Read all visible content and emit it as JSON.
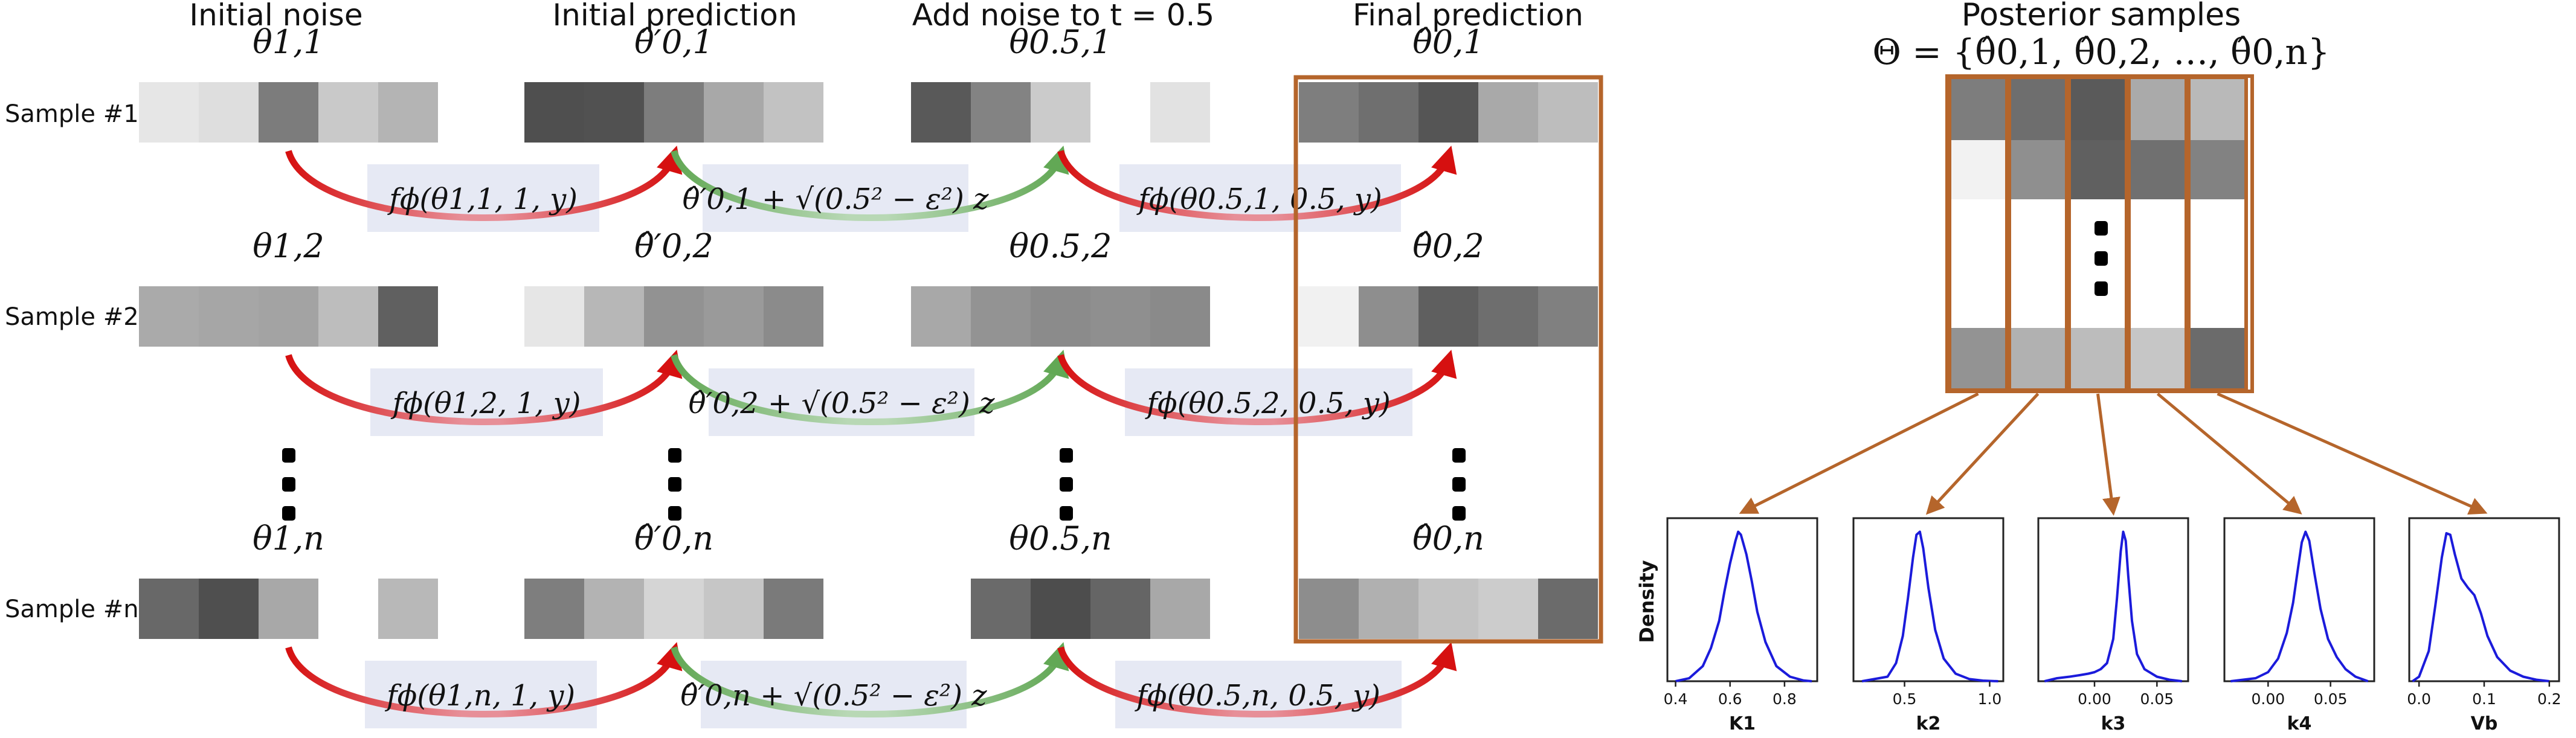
{
  "palette": {
    "frame": "#b5652b",
    "arrow_red": "#d61010",
    "arrow_red_light": "#e78f98",
    "arrow_green": "#62a855",
    "arrow_green_light": "#b8d8b5",
    "formula_bg": "#e6e9f4",
    "kde_line": "#1b1bdb"
  },
  "stages": [
    {
      "title": "Initial noise"
    },
    {
      "title": "Initial prediction"
    },
    {
      "title": "Add noise to t = 0.5"
    },
    {
      "title": "Final prediction"
    }
  ],
  "rows": [
    {
      "label": "Sample #1",
      "var_labels": [
        "θ1,1",
        "θ̂′0,1",
        "θ0.5,1",
        "θ̂0,1"
      ],
      "formulas": [
        "fϕ(θ1,1, 1, y)",
        "θ̂′0,1 + √(0.5² − ε²) z",
        "fϕ(θ0.5,1, 0.5, y)"
      ],
      "shades": [
        [
          "#e6e6e6",
          "#dedede",
          "#7c7c7c",
          "#c9c9c9",
          "#b4b4b4"
        ],
        [
          "#4f4f4f",
          "#515151",
          "#7d7d7d",
          "#a8a8a8",
          "#c2c2c2"
        ],
        [
          "#595959",
          "#838383",
          "#cbcbcb",
          "#ffffff",
          "#e2e2e2"
        ],
        [
          "#7e7e7e",
          "#6f6f6f",
          "#555555",
          "#a9a9a9",
          "#bdbdbd"
        ]
      ]
    },
    {
      "label": "Sample #2",
      "var_labels": [
        "θ1,2",
        "θ̂′0,2",
        "θ0.5,2",
        "θ̂0,2"
      ],
      "formulas": [
        "fϕ(θ1,2, 1, y)",
        "θ̂′0,2 + √(0.5² − ε²) z",
        "fϕ(θ0.5,2, 0.5, y)"
      ],
      "shades": [
        [
          "#aaaaaa",
          "#a6a6a6",
          "#a3a3a3",
          "#bdbdbd",
          "#606060"
        ],
        [
          "#e6e6e6",
          "#b7b7b7",
          "#929292",
          "#9a9a9a",
          "#8b8b8b"
        ],
        [
          "#a8a8a8",
          "#939393",
          "#8b8b8b",
          "#8f8f8f",
          "#8a8a8a"
        ],
        [
          "#f1f1f1",
          "#8e8e8e",
          "#5f5f5f",
          "#6e6e6e",
          "#808080"
        ]
      ]
    },
    {
      "label": "Sample #n",
      "var_labels": [
        "θ1,n",
        "θ̂′0,n",
        "θ0.5,n",
        "θ̂0,n"
      ],
      "formulas": [
        "fϕ(θ1,n, 1, y)",
        "θ̂′0,n + √(0.5² − ε²) z",
        "fϕ(θ0.5,n, 0.5, y)"
      ],
      "shades": [
        [
          "#686868",
          "#4f4f4f",
          "#a8a8a8",
          "#ffffff",
          "#b8b8b8"
        ],
        [
          "#7e7e7e",
          "#b3b3b3",
          "#d5d5d5",
          "#c6c6c6",
          "#7a7a7a"
        ],
        [
          "#ffffff",
          "#6a6a6a",
          "#4d4d4d",
          "#656565",
          "#a8a8a8"
        ],
        [
          "#8d8d8d",
          "#b0b0b0",
          "#c3c3c3",
          "#cccccc",
          "#6b6b6b"
        ]
      ]
    }
  ],
  "posterior": {
    "title": "Posterior samples",
    "set_label": "Θ = {θ̂0,1, θ̂0,2, …, θ̂0,n}",
    "shades": [
      [
        "#7d7d7d",
        "#6e6e6e",
        "#5a5a5a",
        "#aaaaaa",
        "#b9b9b9"
      ],
      [
        "#f2f2f2",
        "#8f8f8f",
        "#606060",
        "#707070",
        "#828282"
      ],
      [
        "#939393",
        "#b1b1b1",
        "#bcbcbc",
        "#c6c6c6",
        "#6b6b6b"
      ]
    ]
  },
  "density_ylabel": "Density",
  "chart_data": [
    {
      "type": "line",
      "xlabel": "K1",
      "xticks": [
        "0.4",
        "0.6",
        "0.8"
      ],
      "xlim": [
        0.37,
        0.92
      ],
      "ylim": [
        0,
        1.08
      ],
      "series": [
        {
          "x": [
            0.4,
            0.45,
            0.5,
            0.53,
            0.56,
            0.58,
            0.6,
            0.62,
            0.63,
            0.64,
            0.66,
            0.68,
            0.7,
            0.73,
            0.77,
            0.82,
            0.87,
            0.9
          ],
          "values": [
            0.0,
            0.02,
            0.1,
            0.22,
            0.4,
            0.6,
            0.78,
            0.93,
            0.99,
            0.97,
            0.84,
            0.66,
            0.46,
            0.26,
            0.1,
            0.03,
            0.005,
            0.0
          ]
        }
      ]
    },
    {
      "type": "line",
      "xlabel": "k2",
      "xticks": [
        "0.5",
        "1.0"
      ],
      "xlim": [
        0.2,
        1.08
      ],
      "ylim": [
        0,
        1.08
      ],
      "series": [
        {
          "x": [
            0.25,
            0.4,
            0.45,
            0.49,
            0.52,
            0.55,
            0.57,
            0.59,
            0.61,
            0.64,
            0.68,
            0.73,
            0.8,
            0.88,
            0.96,
            1.05
          ],
          "values": [
            0.0,
            0.03,
            0.12,
            0.3,
            0.55,
            0.82,
            0.97,
            0.99,
            0.88,
            0.62,
            0.34,
            0.15,
            0.05,
            0.015,
            0.004,
            0.0
          ]
        }
      ]
    },
    {
      "type": "line",
      "xlabel": "k3",
      "xticks": [
        "0.00",
        "0.05"
      ],
      "xlim": [
        -0.045,
        0.075
      ],
      "ylim": [
        0,
        1.08
      ],
      "series": [
        {
          "x": [
            -0.04,
            -0.03,
            -0.02,
            -0.012,
            -0.005,
            0.0,
            0.005,
            0.01,
            0.015,
            0.018,
            0.021,
            0.023,
            0.025,
            0.027,
            0.03,
            0.034,
            0.04,
            0.05,
            0.06,
            0.07
          ],
          "values": [
            0.0,
            0.02,
            0.03,
            0.04,
            0.05,
            0.06,
            0.08,
            0.12,
            0.28,
            0.55,
            0.86,
            0.99,
            0.93,
            0.7,
            0.4,
            0.18,
            0.08,
            0.03,
            0.01,
            0.0
          ]
        }
      ]
    },
    {
      "type": "line",
      "xlabel": "k4",
      "xticks": [
        "0.00",
        "0.05"
      ],
      "xlim": [
        -0.035,
        0.085
      ],
      "ylim": [
        0,
        1.08
      ],
      "series": [
        {
          "x": [
            -0.03,
            -0.01,
            0.0,
            0.008,
            0.015,
            0.02,
            0.024,
            0.027,
            0.03,
            0.033,
            0.037,
            0.042,
            0.048,
            0.055,
            0.062,
            0.07,
            0.08
          ],
          "values": [
            0.0,
            0.02,
            0.06,
            0.15,
            0.32,
            0.52,
            0.75,
            0.92,
            0.99,
            0.93,
            0.72,
            0.48,
            0.28,
            0.16,
            0.08,
            0.03,
            0.0
          ]
        }
      ]
    },
    {
      "type": "line",
      "xlabel": "Vb",
      "xticks": [
        "0.0",
        "0.1",
        "0.2"
      ],
      "xlim": [
        -0.015,
        0.215
      ],
      "ylim": [
        0,
        1.08
      ],
      "series": [
        {
          "x": [
            -0.01,
            0.0,
            0.015,
            0.025,
            0.035,
            0.042,
            0.048,
            0.055,
            0.065,
            0.075,
            0.085,
            0.095,
            0.105,
            0.12,
            0.14,
            0.16,
            0.18,
            0.2
          ],
          "values": [
            0.0,
            0.03,
            0.2,
            0.5,
            0.82,
            0.98,
            0.97,
            0.84,
            0.68,
            0.62,
            0.57,
            0.45,
            0.3,
            0.16,
            0.07,
            0.03,
            0.01,
            0.0
          ]
        }
      ]
    }
  ]
}
